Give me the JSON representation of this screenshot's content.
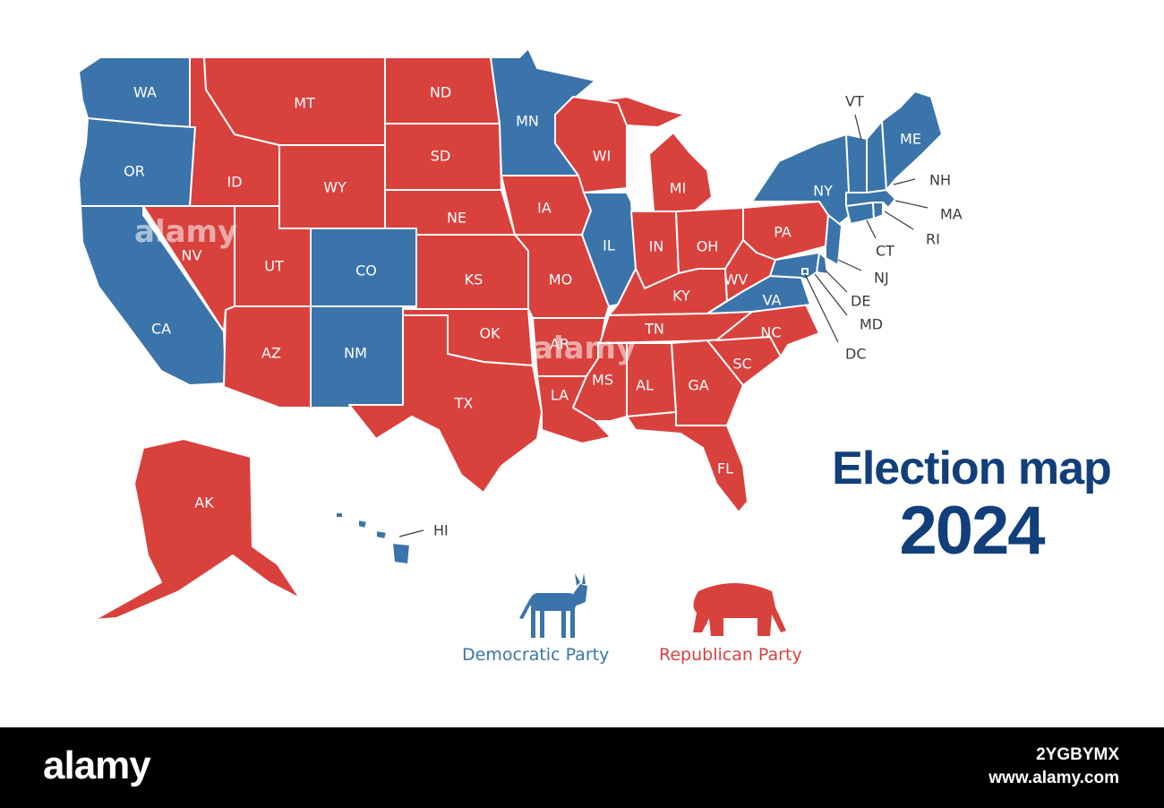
{
  "title": {
    "line1": "Election map",
    "line2": "2024"
  },
  "colors": {
    "democratic": "#3b74aa",
    "republican": "#d9413d",
    "border": "#ffffff"
  },
  "states": [
    {
      "abbr": "WA",
      "party": "D"
    },
    {
      "abbr": "OR",
      "party": "D"
    },
    {
      "abbr": "CA",
      "party": "D"
    },
    {
      "abbr": "NV",
      "party": "R"
    },
    {
      "abbr": "ID",
      "party": "R"
    },
    {
      "abbr": "MT",
      "party": "R"
    },
    {
      "abbr": "WY",
      "party": "R"
    },
    {
      "abbr": "UT",
      "party": "R"
    },
    {
      "abbr": "AZ",
      "party": "R"
    },
    {
      "abbr": "CO",
      "party": "D"
    },
    {
      "abbr": "NM",
      "party": "D"
    },
    {
      "abbr": "ND",
      "party": "R"
    },
    {
      "abbr": "SD",
      "party": "R"
    },
    {
      "abbr": "NE",
      "party": "R"
    },
    {
      "abbr": "KS",
      "party": "R"
    },
    {
      "abbr": "OK",
      "party": "R"
    },
    {
      "abbr": "TX",
      "party": "R"
    },
    {
      "abbr": "MN",
      "party": "D"
    },
    {
      "abbr": "IA",
      "party": "R"
    },
    {
      "abbr": "MO",
      "party": "R"
    },
    {
      "abbr": "AR",
      "party": "R"
    },
    {
      "abbr": "LA",
      "party": "R"
    },
    {
      "abbr": "WI",
      "party": "R"
    },
    {
      "abbr": "IL",
      "party": "D"
    },
    {
      "abbr": "MI",
      "party": "R"
    },
    {
      "abbr": "IN",
      "party": "R"
    },
    {
      "abbr": "OH",
      "party": "R"
    },
    {
      "abbr": "KY",
      "party": "R"
    },
    {
      "abbr": "TN",
      "party": "R"
    },
    {
      "abbr": "MS",
      "party": "R"
    },
    {
      "abbr": "AL",
      "party": "R"
    },
    {
      "abbr": "GA",
      "party": "R"
    },
    {
      "abbr": "FL",
      "party": "R"
    },
    {
      "abbr": "SC",
      "party": "R"
    },
    {
      "abbr": "NC",
      "party": "R"
    },
    {
      "abbr": "VA",
      "party": "D"
    },
    {
      "abbr": "WV",
      "party": "R"
    },
    {
      "abbr": "PA",
      "party": "R"
    },
    {
      "abbr": "NY",
      "party": "D"
    },
    {
      "abbr": "VT",
      "party": "D"
    },
    {
      "abbr": "NH",
      "party": "D"
    },
    {
      "abbr": "ME",
      "party": "D"
    },
    {
      "abbr": "MA",
      "party": "D"
    },
    {
      "abbr": "RI",
      "party": "D"
    },
    {
      "abbr": "CT",
      "party": "D"
    },
    {
      "abbr": "NJ",
      "party": "D"
    },
    {
      "abbr": "DE",
      "party": "D"
    },
    {
      "abbr": "MD",
      "party": "D"
    },
    {
      "abbr": "DC",
      "party": "D"
    },
    {
      "abbr": "AK",
      "party": "R"
    },
    {
      "abbr": "HI",
      "party": "D"
    }
  ],
  "legend": {
    "democratic": {
      "label": "Democratic Party",
      "icon": "donkey-icon"
    },
    "republican": {
      "label": "Republican Party",
      "icon": "elephant-icon"
    }
  },
  "watermark": {
    "text": "alamy"
  },
  "footer": {
    "logo": "alamy",
    "image_id": "2YGBYMX",
    "site": "www.alamy.com"
  }
}
